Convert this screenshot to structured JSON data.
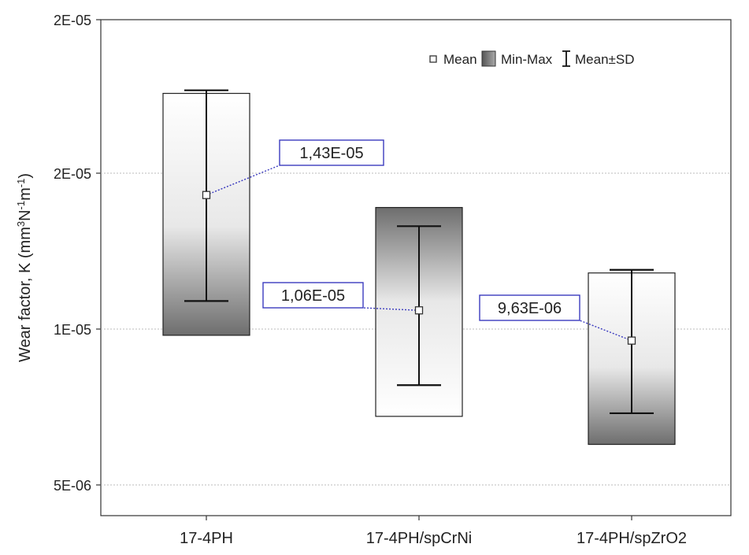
{
  "chart_data": {
    "type": "box",
    "ylabel_main": "Wear factor, K (mm",
    "ylabel_sup1": "3",
    "ylabel_mid1": "N",
    "ylabel_sup2": "-1",
    "ylabel_mid2": "m",
    "ylabel_sup3": "-1",
    "ylabel_end": ")",
    "yticks": [
      {
        "value": 5e-06,
        "label": "5E-06"
      },
      {
        "value": 1e-05,
        "label": "1E-05"
      },
      {
        "value": 1.5e-05,
        "label": "2E-05"
      },
      {
        "value": 2e-05,
        "label": "2E-05"
      }
    ],
    "ylim": [
      3.5e-06,
      2.05e-05
    ],
    "grid": true,
    "legend_position": "top-right",
    "legend": {
      "mean": "Mean",
      "minmax": "Min-Max",
      "sd": "Mean±SD"
    },
    "categories": [
      "17-4PH",
      "17-4PH/spCrNi",
      "17-4PH/spZrO2"
    ],
    "series": [
      {
        "category": "17-4PH",
        "mean": 1.43e-05,
        "min": 9.8e-06,
        "max": 1.76e-05,
        "sd_low": 1.09e-05,
        "sd_high": 1.77e-05,
        "annotation": "1,43E-05"
      },
      {
        "category": "17-4PH/spCrNi",
        "mean": 1.06e-05,
        "min": 7.2e-06,
        "max": 1.39e-05,
        "sd_low": 8.2e-06,
        "sd_high": 1.33e-05,
        "annotation": "1,06E-05"
      },
      {
        "category": "17-4PH/spZrO2",
        "mean": 9.63e-06,
        "min": 6.3e-06,
        "max": 1.18e-05,
        "sd_low": 7.3e-06,
        "sd_high": 1.19e-05,
        "annotation": "9,63E-06"
      }
    ]
  }
}
